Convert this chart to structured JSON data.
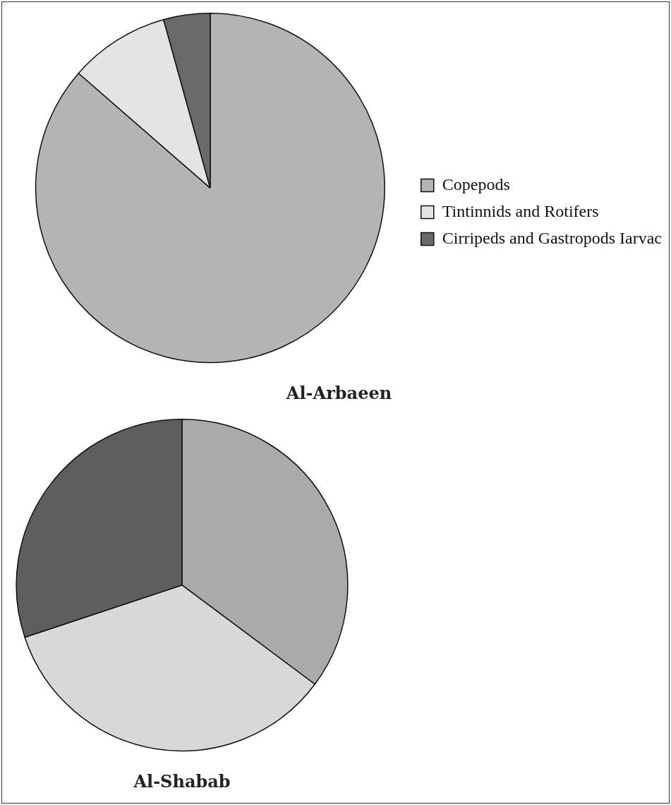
{
  "chart_data": [
    {
      "type": "pie",
      "title": "Al-Arbaeen",
      "categories": [
        "Copepods",
        "Tintinnids and Rotifers",
        "Cirripeds and Gastropods Iarvac"
      ],
      "values": [
        86.4,
        9.3,
        4.3
      ],
      "colors": [
        "#b4b4b4",
        "#e4e4e4",
        "#6a6a6a"
      ],
      "legend": "right"
    },
    {
      "type": "pie",
      "title": "Al-Shabab",
      "categories": [
        null,
        null,
        null
      ],
      "values": [
        35.2,
        34.7,
        30.1
      ],
      "colors": [
        "#aaaaaa",
        "#d8d8d8",
        "#5e5e5e"
      ]
    }
  ]
}
